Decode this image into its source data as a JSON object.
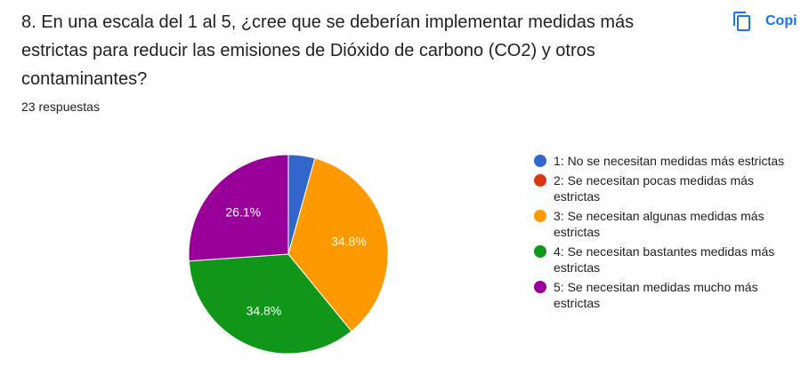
{
  "question": "8. En una escala del 1 al 5, ¿cree que se deberían implementar medidas más estrictas para reducir las emisiones de Dióxido de carbono (CO2) y otros contaminantes?",
  "response_count": "23 respuestas",
  "copy_label": "Copi",
  "icons": {
    "copy": "copy-icon"
  },
  "chart_data": {
    "type": "pie",
    "categories": [
      "1: No se necesitan medidas más estrictas",
      "2: Se necesitan pocas medidas más estrictas",
      "3: Se necesitan algunas medidas más estrictas",
      "4: Se necesitan bastantes medidas más estrictas",
      "5: Se necesitan medidas mucho más estrictas"
    ],
    "values": [
      4.3,
      0,
      34.8,
      34.8,
      26.1
    ],
    "data_labels": [
      "",
      "",
      "34.8%",
      "34.8%",
      "26.1%"
    ],
    "colors": [
      "#3366cc",
      "#dc3912",
      "#ff9900",
      "#109618",
      "#990099"
    ],
    "legend_position": "right"
  }
}
